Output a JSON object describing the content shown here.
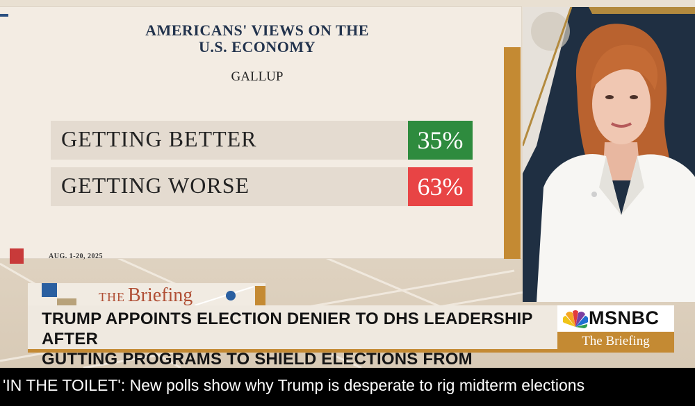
{
  "graphic": {
    "title_line1": "AMERICANS' VIEWS ON THE",
    "title_line2": "U.S. ECONOMY",
    "source": "GALLUP",
    "rows": [
      {
        "label": "GETTING BETTER",
        "value": "35%",
        "color": "#2e8b3e"
      },
      {
        "label": "GETTING WORSE",
        "value": "63%",
        "color": "#e84445"
      }
    ],
    "date_note": "AUG. 1-20, 2025"
  },
  "show": {
    "logo_prefix": "THE",
    "logo_main": "Briefing"
  },
  "lower_third": {
    "headline_line1": "TRUMP APPOINTS ELECTION DENIER TO DHS LEADERSHIP AFTER",
    "headline_line2": "GUTTING PROGRAMS TO SHIELD ELECTIONS FROM INTERFERENCE",
    "network": "MSNBC",
    "network_sub": "The Briefing",
    "accent": "#c48a33"
  },
  "caption": "'IN THE TOILET': New polls show why Trump is desperate to rig midterm elections",
  "icons": [
    "peacock-icon",
    "anchor-person-image"
  ]
}
